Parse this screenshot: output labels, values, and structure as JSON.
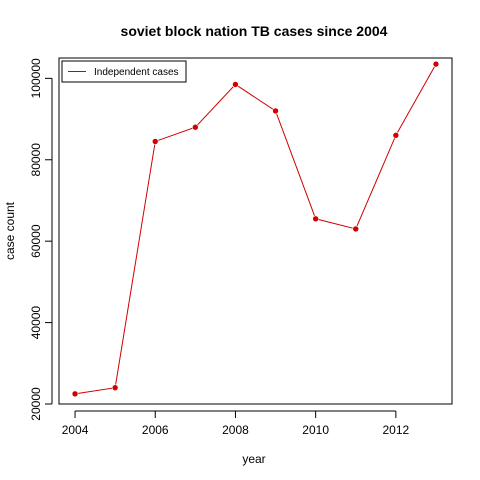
{
  "chart_data": {
    "type": "line",
    "title": "soviet block nation TB cases since 2004",
    "xlabel": "year",
    "ylabel": "case count",
    "xlim": [
      2003.6,
      2013.4
    ],
    "ylim": [
      20000,
      105000
    ],
    "x_ticks": [
      2004,
      2006,
      2008,
      2010,
      2012
    ],
    "y_ticks": [
      20000,
      40000,
      60000,
      80000,
      100000
    ],
    "grid": false,
    "legend": {
      "position": "top-left"
    },
    "series": [
      {
        "name": "Independent cases",
        "color": "#d00000",
        "x": [
          2004,
          2005,
          2006,
          2007,
          2008,
          2009,
          2010,
          2011,
          2012,
          2013
        ],
        "y": [
          22500,
          24000,
          84500,
          88000,
          98500,
          92000,
          65500,
          63000,
          86000,
          103500
        ]
      }
    ]
  }
}
